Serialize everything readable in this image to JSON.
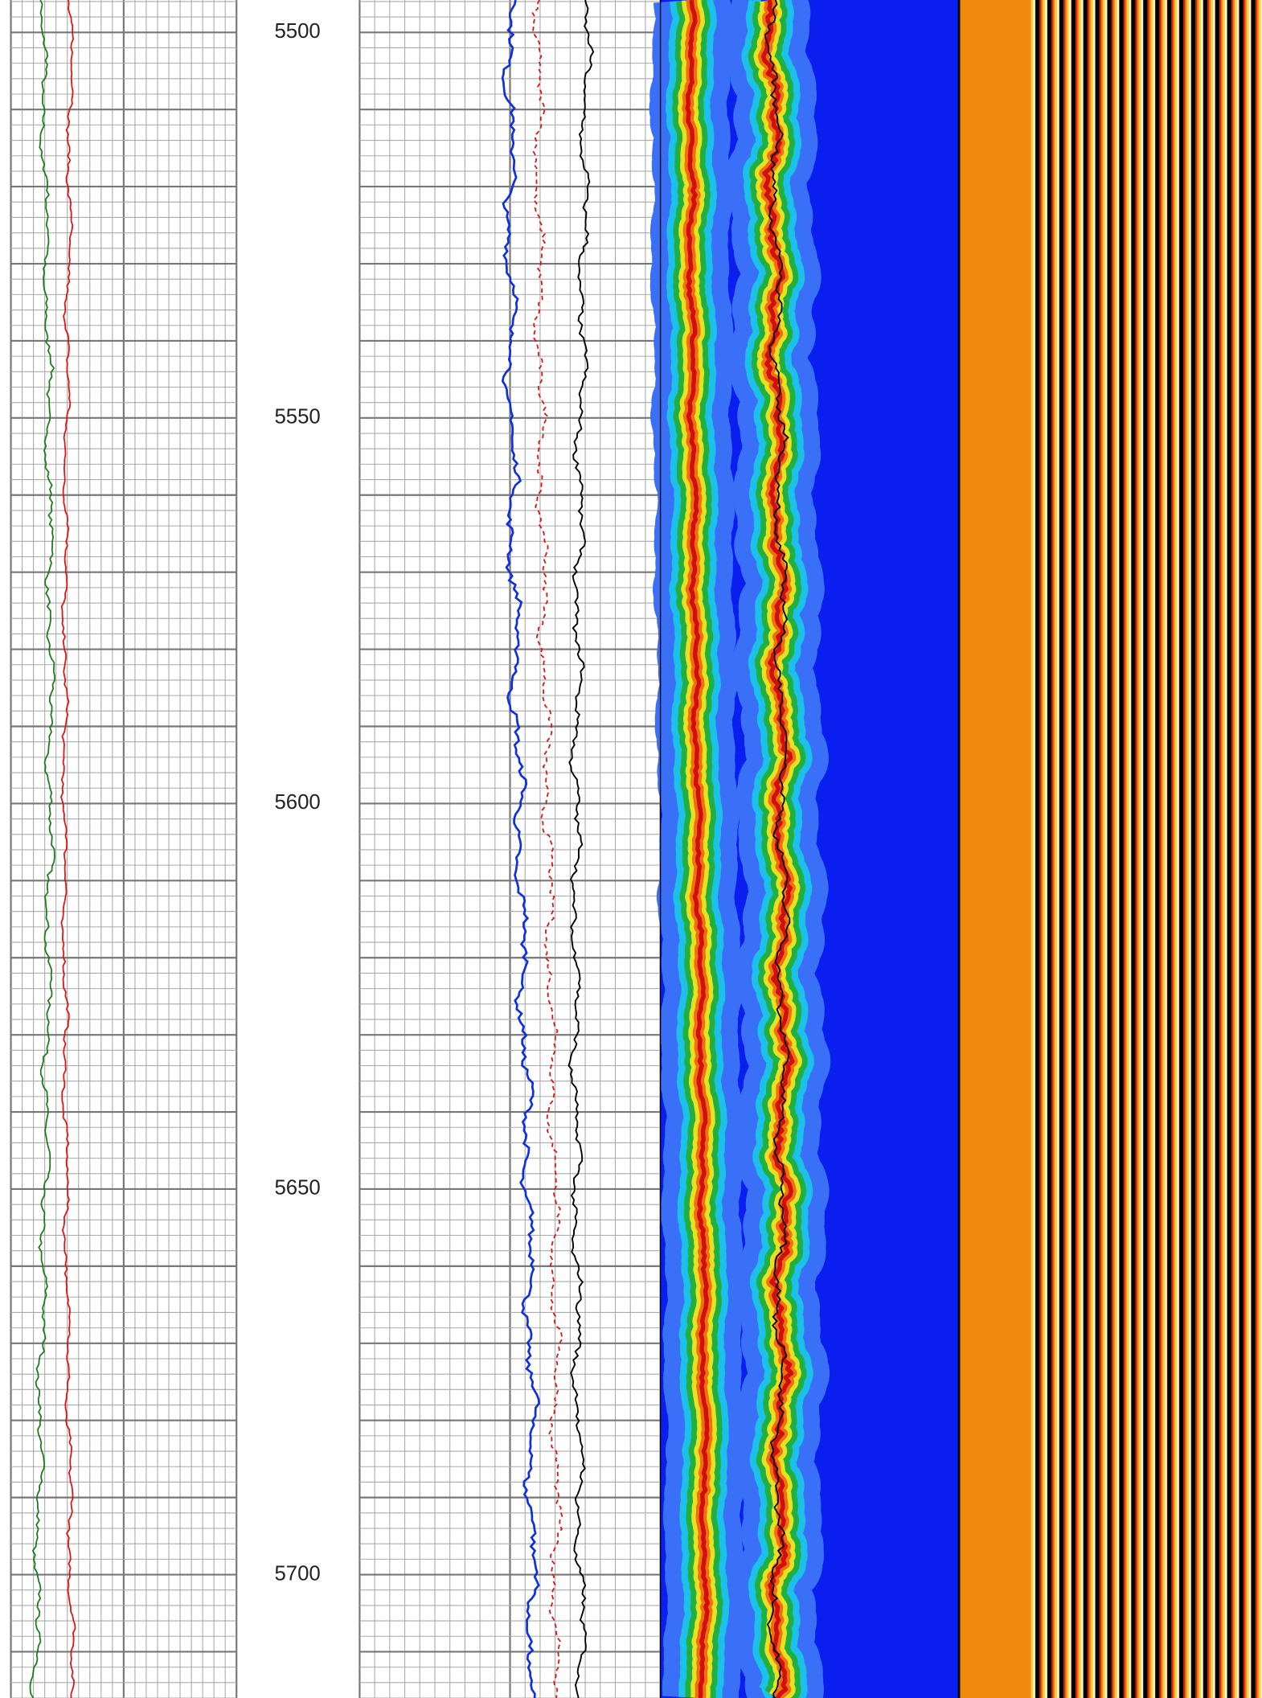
{
  "chart_data": {
    "type": "log",
    "ylim": [
      5495.8,
      5716
    ],
    "yticks": [
      5500,
      5550,
      5600,
      5650,
      5700
    ],
    "grid": true
  }
}
